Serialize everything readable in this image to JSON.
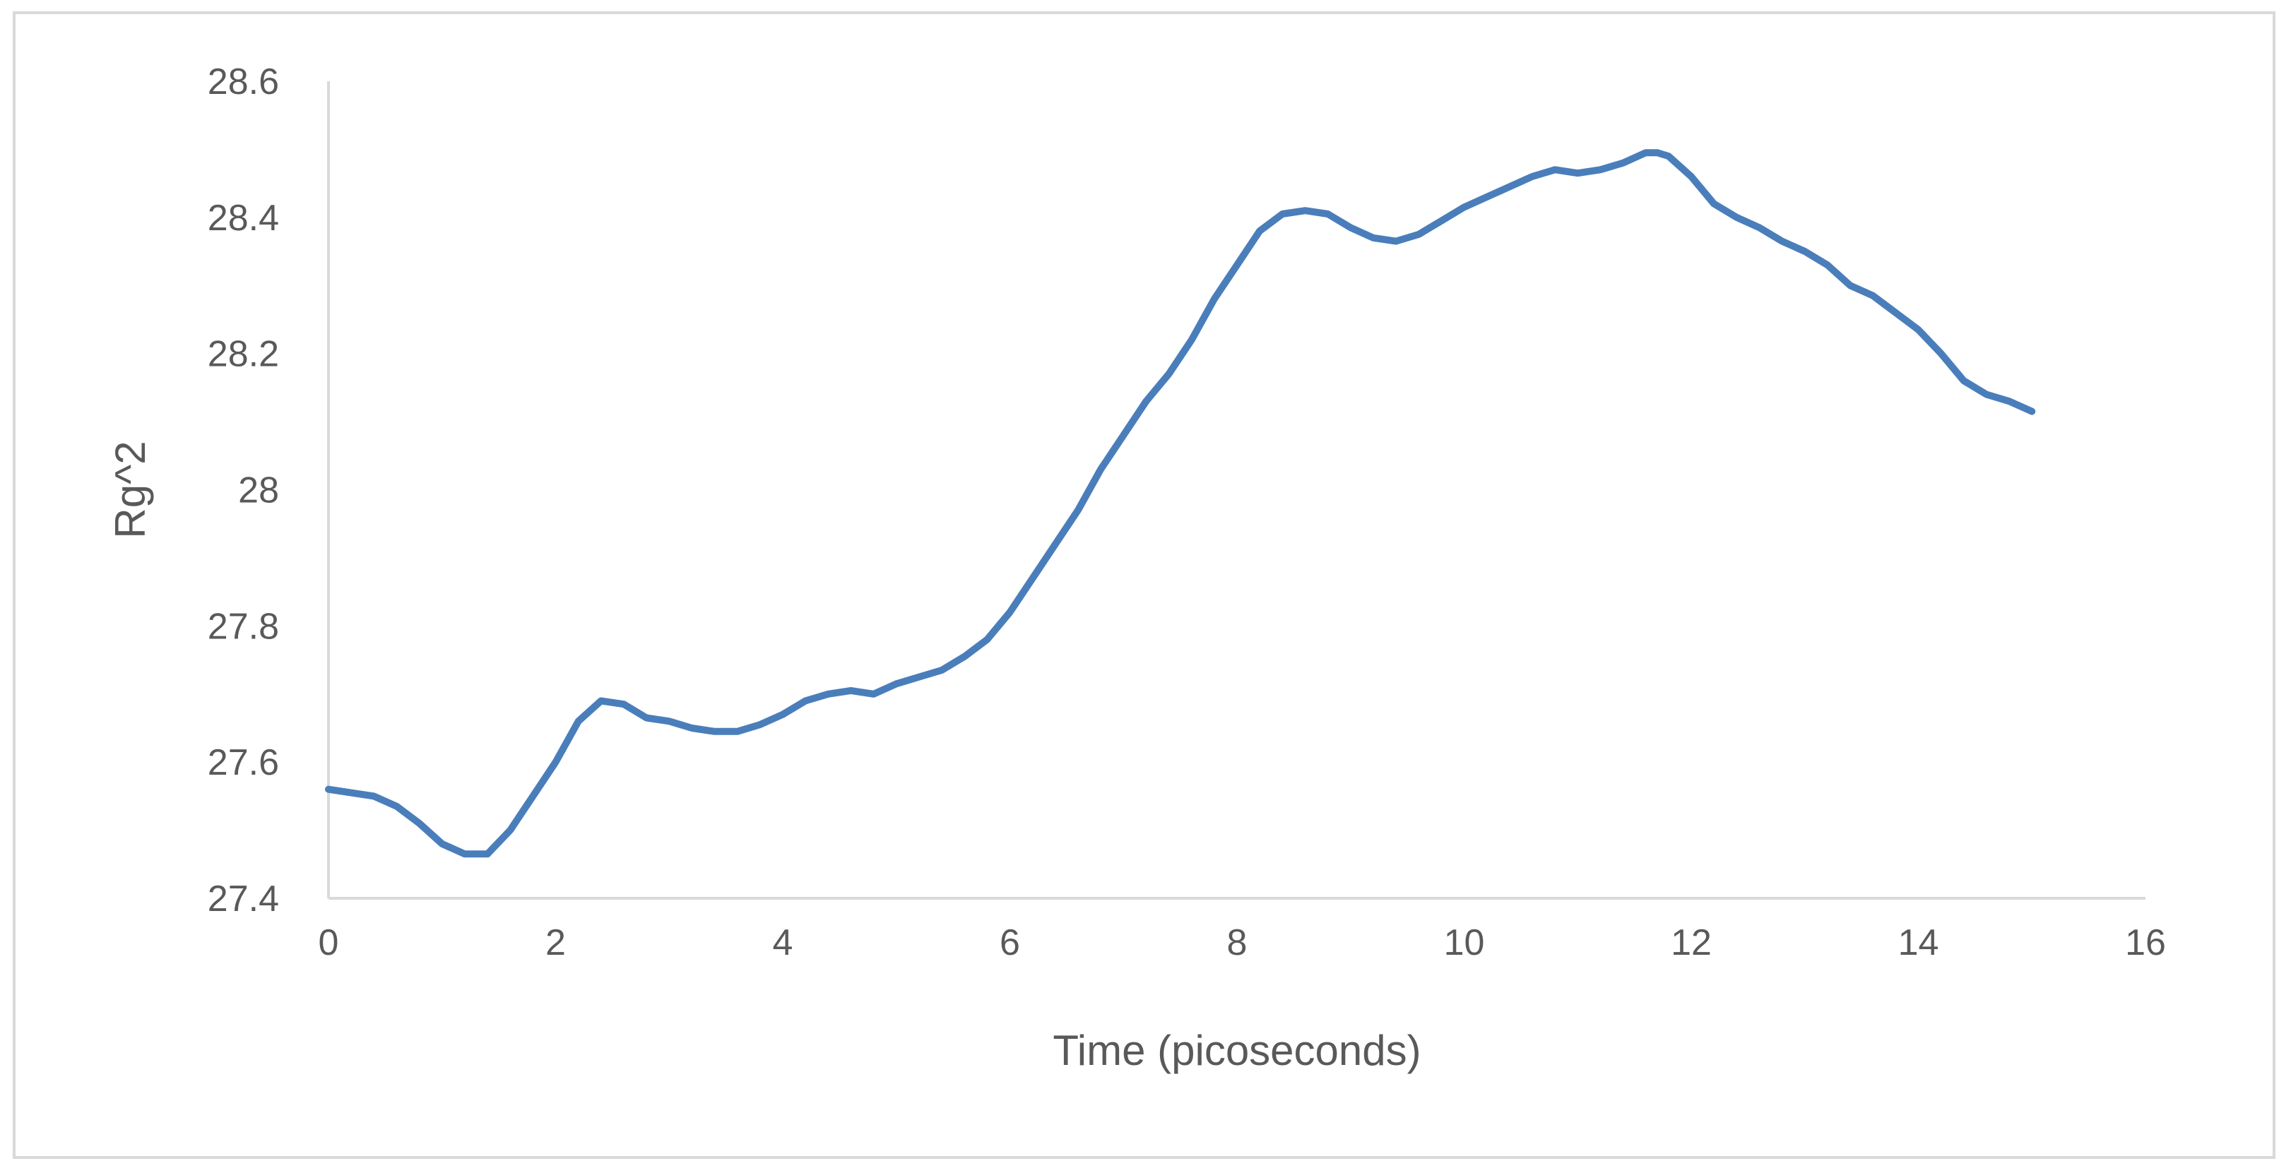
{
  "chart_data": {
    "type": "line",
    "title": "",
    "xlabel": "Time (picoseconds)",
    "ylabel": "Rg^2",
    "xlim": [
      0,
      16
    ],
    "ylim": [
      27.4,
      28.6
    ],
    "x_ticks": [
      "0",
      "2",
      "4",
      "6",
      "8",
      "10",
      "12",
      "14",
      "16"
    ],
    "y_ticks": [
      "27.4",
      "27.6",
      "27.8",
      "28",
      "28.2",
      "28.4",
      "28.6"
    ],
    "grid": false,
    "legend": "none",
    "series_color": "#4a7ebb",
    "series": [
      {
        "x": [
          0,
          0.2,
          0.4,
          0.6,
          0.8,
          1.0,
          1.2,
          1.3,
          1.4,
          1.6,
          1.8,
          2.0,
          2.2,
          2.4,
          2.6,
          2.8,
          3.0,
          3.2,
          3.4,
          3.6,
          3.8,
          4.0,
          4.2,
          4.4,
          4.6,
          4.8,
          5.0,
          5.2,
          5.4,
          5.6,
          5.8,
          6.0,
          6.2,
          6.4,
          6.6,
          6.8,
          7.0,
          7.2,
          7.4,
          7.6,
          7.8,
          8.0,
          8.2,
          8.4,
          8.6,
          8.8,
          9.0,
          9.2,
          9.4,
          9.6,
          9.8,
          10.0,
          10.2,
          10.4,
          10.6,
          10.8,
          11.0,
          11.2,
          11.4,
          11.6,
          11.7,
          11.8,
          12.0,
          12.2,
          12.4,
          12.6,
          12.8,
          13.0,
          13.2,
          13.4,
          13.6,
          13.8,
          14.0,
          14.2,
          14.4,
          14.6,
          14.8,
          15.0
        ],
        "y": [
          27.56,
          27.555,
          27.55,
          27.535,
          27.51,
          27.48,
          27.465,
          27.465,
          27.465,
          27.5,
          27.55,
          27.6,
          27.66,
          27.69,
          27.685,
          27.665,
          27.66,
          27.65,
          27.645,
          27.645,
          27.655,
          27.67,
          27.69,
          27.7,
          27.705,
          27.7,
          27.715,
          27.725,
          27.735,
          27.755,
          27.78,
          27.82,
          27.87,
          27.92,
          27.97,
          28.03,
          28.08,
          28.13,
          28.17,
          28.22,
          28.28,
          28.33,
          28.38,
          28.405,
          28.41,
          28.405,
          28.385,
          28.37,
          28.365,
          28.375,
          28.395,
          28.415,
          28.43,
          28.445,
          28.46,
          28.47,
          28.465,
          28.47,
          28.48,
          28.495,
          28.495,
          28.49,
          28.46,
          28.42,
          28.4,
          28.385,
          28.365,
          28.35,
          28.33,
          28.3,
          28.285,
          28.26,
          28.235,
          28.2,
          28.16,
          28.14,
          28.13,
          28.115
        ]
      }
    ]
  }
}
